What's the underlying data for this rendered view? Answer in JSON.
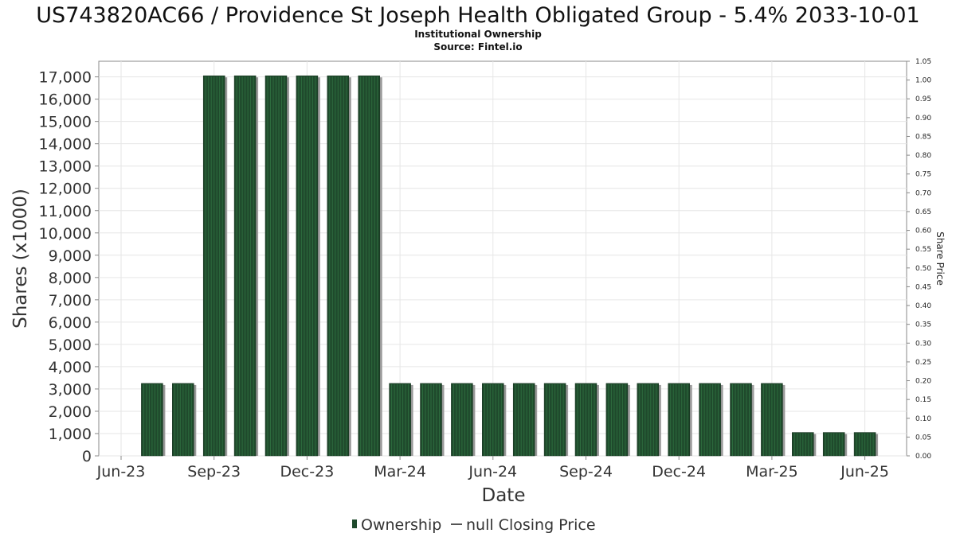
{
  "chart_data": {
    "type": "bar",
    "title": "US743820AC66 / Providence St Joseph Health Obligated Group - 5.4% 2033-10-01",
    "subtitle": "Institutional Ownership",
    "source": "Source: Fintel.io",
    "xlabel": "Date",
    "ylabel": "Shares (x1000)",
    "y2label": "Share Price",
    "ylim": [
      0,
      17700
    ],
    "y2lim": [
      0,
      1.05
    ],
    "yticks": [
      "0",
      "1,000",
      "2,000",
      "3,000",
      "4,000",
      "5,000",
      "6,000",
      "7,000",
      "8,000",
      "9,000",
      "10,000",
      "11,000",
      "12,000",
      "13,000",
      "14,000",
      "15,000",
      "16,000",
      "17,000"
    ],
    "y2ticks": [
      "0.00",
      "0.05",
      "0.10",
      "0.15",
      "0.20",
      "0.25",
      "0.30",
      "0.35",
      "0.40",
      "0.45",
      "0.50",
      "0.55",
      "0.60",
      "0.65",
      "0.70",
      "0.75",
      "0.80",
      "0.85",
      "0.90",
      "0.95",
      "1.00",
      "1.05"
    ],
    "xticks": [
      "Jun-23",
      "Sep-23",
      "Dec-23",
      "Mar-24",
      "Jun-24",
      "Sep-24",
      "Dec-24",
      "Mar-25",
      "Jun-25"
    ],
    "grid": true,
    "legend_position": "bottom",
    "series": [
      {
        "name": "Ownership",
        "color": "#1f4a2c",
        "categories": [
          "2023-07",
          "2023-08",
          "2023-09",
          "2023-10",
          "2023-11",
          "2023-12",
          "2024-01",
          "2024-02",
          "2024-03",
          "2024-04",
          "2024-05",
          "2024-06",
          "2024-07",
          "2024-08",
          "2024-09",
          "2024-10",
          "2024-11",
          "2024-12",
          "2025-01",
          "2025-02",
          "2025-03",
          "2025-04",
          "2025-05",
          "2025-06"
        ],
        "values": [
          3250,
          3250,
          17050,
          17050,
          17050,
          17050,
          17050,
          17050,
          3250,
          3250,
          3250,
          3250,
          3250,
          3250,
          3250,
          3250,
          3250,
          3250,
          3250,
          3250,
          3250,
          1050,
          1050,
          1050
        ]
      },
      {
        "name": "null Closing Price",
        "color": "#555555",
        "values": []
      }
    ]
  }
}
